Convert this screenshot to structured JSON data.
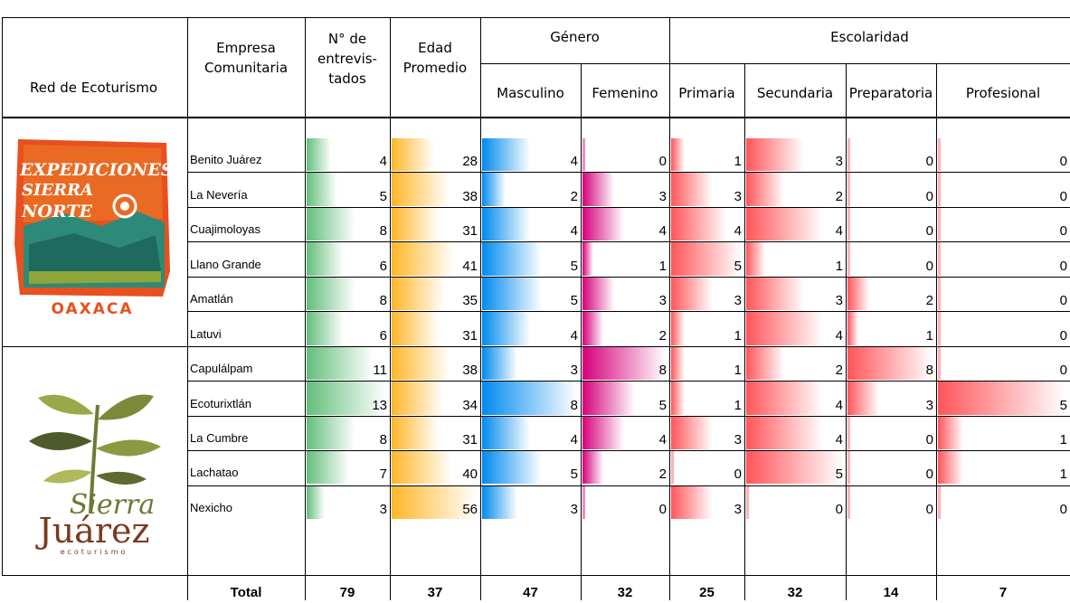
{
  "headers": {
    "red": "Red de Ecoturismo",
    "empresa": [
      "Empresa",
      "Comunitaria"
    ],
    "entrevistados": [
      "N° de",
      "entrevis-",
      "tados"
    ],
    "edad": [
      "Edad",
      "Promedio"
    ],
    "genero": "Género",
    "masculino": "Masculino",
    "femenino": "Femenino",
    "escolaridad": "Escolaridad",
    "primaria": "Primaria",
    "secundaria": "Secundaria",
    "preparatoria": "Preparatoria",
    "profesional": "Profesional"
  },
  "networks": [
    {
      "logo_text": {
        "line1": "EXPEDICIONES",
        "line2": "SIERRA",
        "line3": "NORTE",
        "line4": "OAXACA"
      },
      "rows": [
        {
          "name": "Benito Juárez",
          "entrevistados": 4,
          "edad": 28,
          "masculino": 4,
          "femenino": 0,
          "primaria": 1,
          "secundaria": 3,
          "preparatoria": 0,
          "profesional": 0
        },
        {
          "name": "La Nevería",
          "entrevistados": 5,
          "edad": 38,
          "masculino": 2,
          "femenino": 3,
          "primaria": 3,
          "secundaria": 2,
          "preparatoria": 0,
          "profesional": 0
        },
        {
          "name": "Cuajimoloyas",
          "entrevistados": 8,
          "edad": 31,
          "masculino": 4,
          "femenino": 4,
          "primaria": 4,
          "secundaria": 4,
          "preparatoria": 0,
          "profesional": 0
        },
        {
          "name": "Llano Grande",
          "entrevistados": 6,
          "edad": 41,
          "masculino": 5,
          "femenino": 1,
          "primaria": 5,
          "secundaria": 1,
          "preparatoria": 0,
          "profesional": 0
        },
        {
          "name": "Amatlán",
          "entrevistados": 8,
          "edad": 35,
          "masculino": 5,
          "femenino": 3,
          "primaria": 3,
          "secundaria": 3,
          "preparatoria": 2,
          "profesional": 0
        },
        {
          "name": "Latuvi",
          "entrevistados": 6,
          "edad": 31,
          "masculino": 4,
          "femenino": 2,
          "primaria": 1,
          "secundaria": 4,
          "preparatoria": 1,
          "profesional": 0
        }
      ]
    },
    {
      "logo_text": {
        "line1": "Sierra",
        "line2": "Juárez",
        "line3": "ecoturismo"
      },
      "rows": [
        {
          "name": "Capulálpam",
          "entrevistados": 11,
          "edad": 38,
          "masculino": 3,
          "femenino": 8,
          "primaria": 1,
          "secundaria": 2,
          "preparatoria": 8,
          "profesional": 0
        },
        {
          "name": "Ecoturixtlán",
          "entrevistados": 13,
          "edad": 34,
          "masculino": 8,
          "femenino": 5,
          "primaria": 1,
          "secundaria": 4,
          "preparatoria": 3,
          "profesional": 5
        },
        {
          "name": "La Cumbre",
          "entrevistados": 8,
          "edad": 31,
          "masculino": 4,
          "femenino": 4,
          "primaria": 3,
          "secundaria": 4,
          "preparatoria": 0,
          "profesional": 1
        },
        {
          "name": "Lachatao",
          "entrevistados": 7,
          "edad": 40,
          "masculino": 5,
          "femenino": 2,
          "primaria": 0,
          "secundaria": 5,
          "preparatoria": 0,
          "profesional": 1
        },
        {
          "name": "Nexicho",
          "entrevistados": 3,
          "edad": 56,
          "masculino": 3,
          "femenino": 0,
          "primaria": 3,
          "secundaria": 0,
          "preparatoria": 0,
          "profesional": 0
        }
      ]
    }
  ],
  "totals": {
    "label": "Total",
    "entrevistados": "79",
    "edad": "37",
    "masculino": "47",
    "femenino": "32",
    "primaria": "25",
    "secundaria": "32",
    "preparatoria": "14",
    "profesional": "7"
  },
  "colors": {
    "entrevistados": "#63be7b",
    "edad": "#ffb628",
    "masculino": "#008aef",
    "femenino": "#d6007b",
    "escolaridad": "#ff555a"
  }
}
